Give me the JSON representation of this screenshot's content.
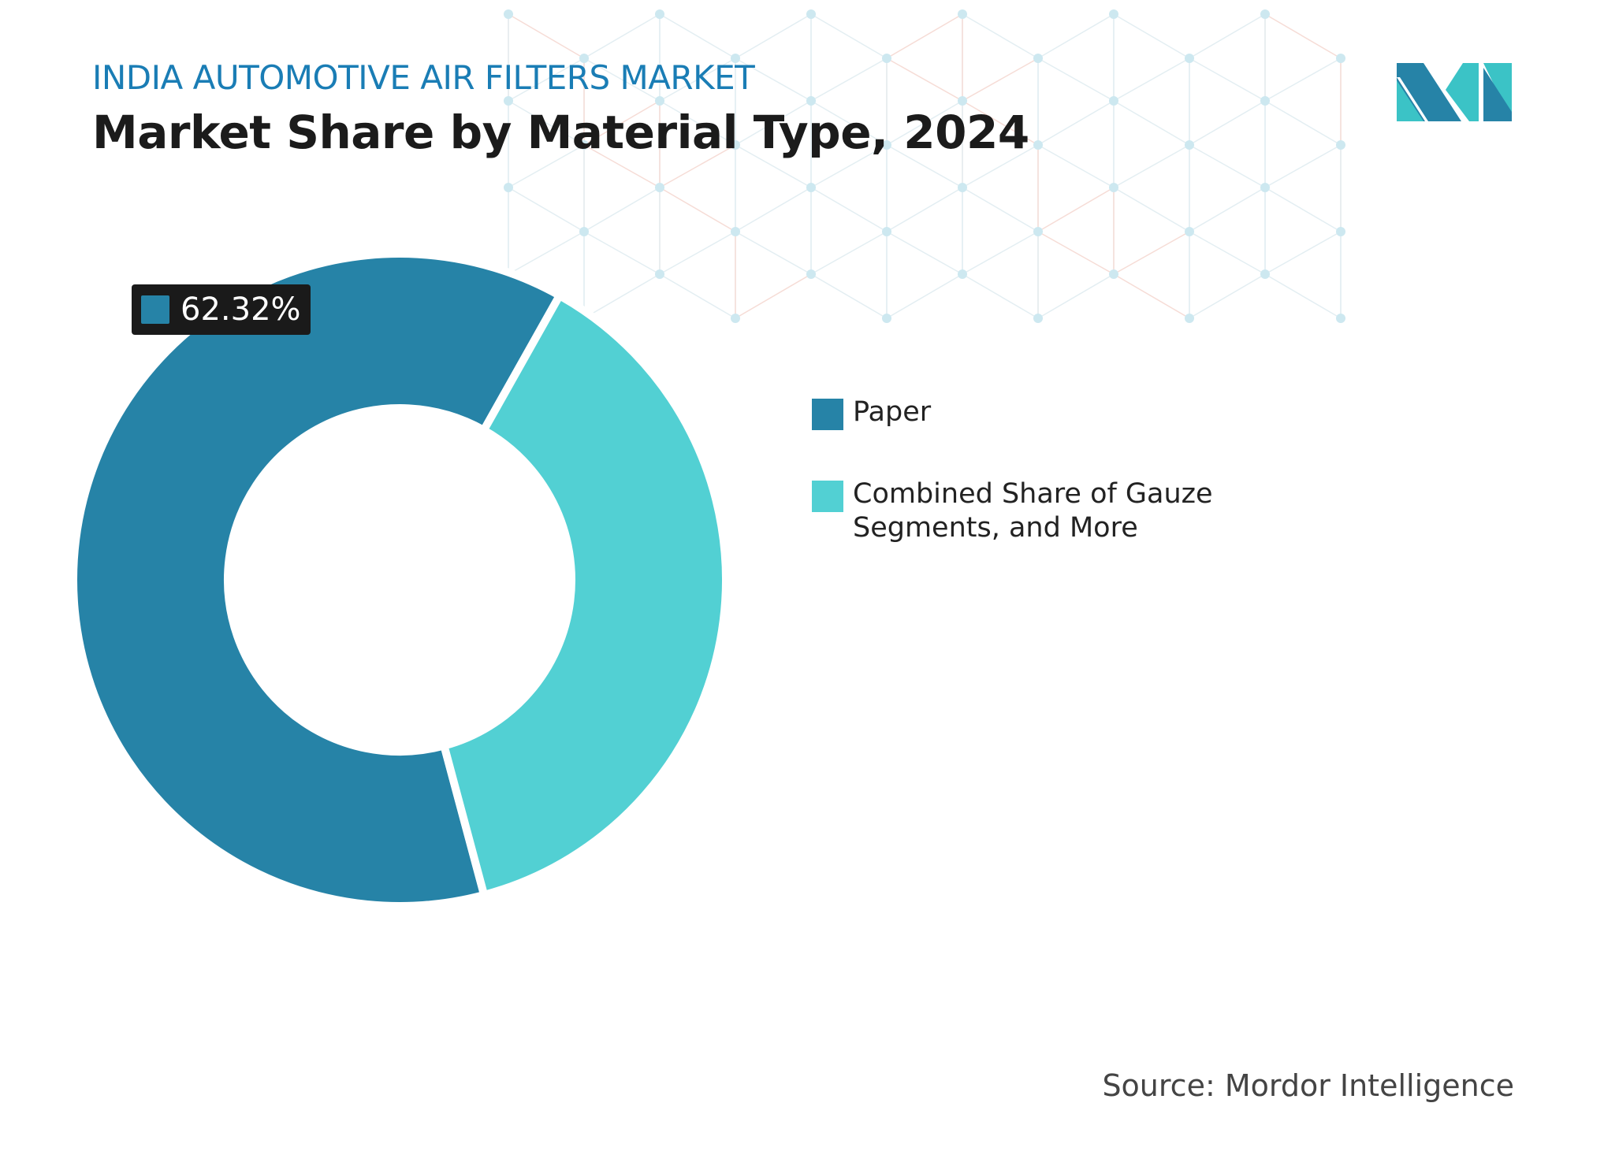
{
  "header": {
    "subtitle": "INDIA AUTOMOTIVE AIR FILTERS MARKET",
    "title": "Market Share by Material Type, 2024"
  },
  "chart_data": {
    "type": "pie",
    "variant": "donut",
    "title": "Market Share by Material Type, 2024",
    "categories": [
      "Paper",
      "Combined Share of Gauze Segments, and More"
    ],
    "values": [
      62.32,
      37.68
    ],
    "colors": [
      "#2683a7",
      "#52d0d3"
    ],
    "data_labels": [
      "62.32%"
    ],
    "legend_position": "right"
  },
  "legend": {
    "items": [
      {
        "label": "Paper",
        "color": "#2683a7"
      },
      {
        "label": "Combined Share of Gauze Segments, and More",
        "color": "#52d0d3"
      }
    ]
  },
  "data_label": "62.32%",
  "source": "Source: Mordor Intelligence",
  "logo": {
    "icon": "mordor-intelligence-logo",
    "colors": [
      "#2683a7",
      "#3bc3c6"
    ]
  }
}
